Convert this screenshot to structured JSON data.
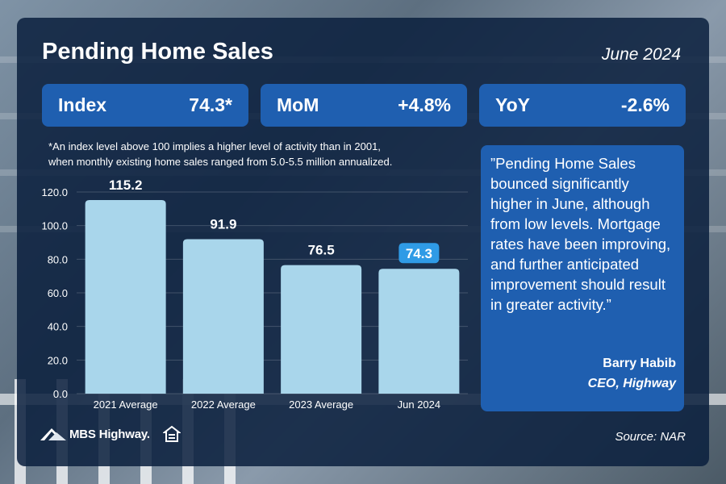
{
  "header": {
    "title": "Pending Home Sales",
    "date": "June 2024"
  },
  "stats": [
    {
      "label": "Index",
      "value": "74.3*"
    },
    {
      "label": "MoM",
      "value": "+4.8%"
    },
    {
      "label": "YoY",
      "value": "-2.6%"
    }
  ],
  "footnote": {
    "line1": "*An index level above 100 implies a higher level of activity than in 2001,",
    "line2": "when monthly existing home sales ranged from 5.0-5.5 million annualized."
  },
  "quote": {
    "text": "”Pending Home Sales bounced significantly higher in June, although from low levels. Mortgage rates have been improving, and further anticipated improvement should result in greater activity.”",
    "author": "Barry Habib",
    "author_title": "CEO, Highway"
  },
  "footer": {
    "logo_text": "MBS Highway.",
    "source": "Source: NAR"
  },
  "colors": {
    "bar": "#a9d6eb",
    "highlight_label_bg": "#2f9be6",
    "panel": "#0a203e",
    "accent": "#1f5fb0"
  },
  "chart_data": {
    "type": "bar",
    "categories": [
      "2021 Average",
      "2022 Average",
      "2023 Average",
      "Jun 2024"
    ],
    "values": [
      115.2,
      91.9,
      76.5,
      74.3
    ],
    "value_labels": [
      "115.2",
      "91.9",
      "76.5",
      "74.3"
    ],
    "highlight_index": 3,
    "ylim": [
      0,
      120
    ],
    "yticks": [
      "0.0",
      "20.0",
      "40.0",
      "60.0",
      "80.0",
      "100.0",
      "120.0"
    ],
    "ytick_values": [
      0,
      20,
      40,
      60,
      80,
      100,
      120
    ],
    "grid": true,
    "title": "",
    "xlabel": "",
    "ylabel": ""
  }
}
